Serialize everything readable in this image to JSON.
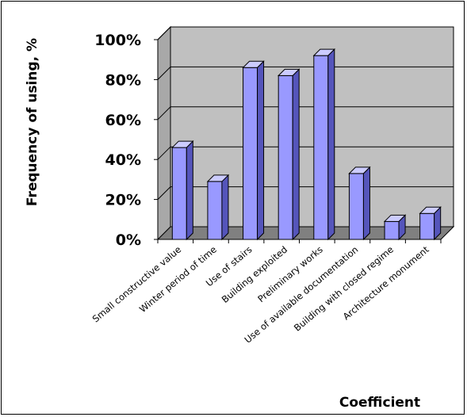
{
  "chart_data": {
    "type": "bar",
    "title": "",
    "xlabel": "Coefficient",
    "ylabel": "Frequency of using, %",
    "ylim": [
      0,
      100
    ],
    "yticks": [
      "0%",
      "20%",
      "40%",
      "60%",
      "80%",
      "100%"
    ],
    "grid": true,
    "categories": [
      "Small constructive value",
      "Winter period of time",
      "Use of stairs",
      "Building exploited",
      "Preliminary works",
      "Use of available documentation",
      "Building with closed regime",
      "Architecture monument"
    ],
    "values": [
      46,
      29,
      86,
      82,
      92,
      33,
      9,
      13
    ]
  },
  "colors": {
    "bar_front": "#9999ff",
    "bar_top": "#ccccff",
    "bar_side": "#5555bb",
    "wall": "#c0c0c0",
    "floor": "#808080"
  }
}
